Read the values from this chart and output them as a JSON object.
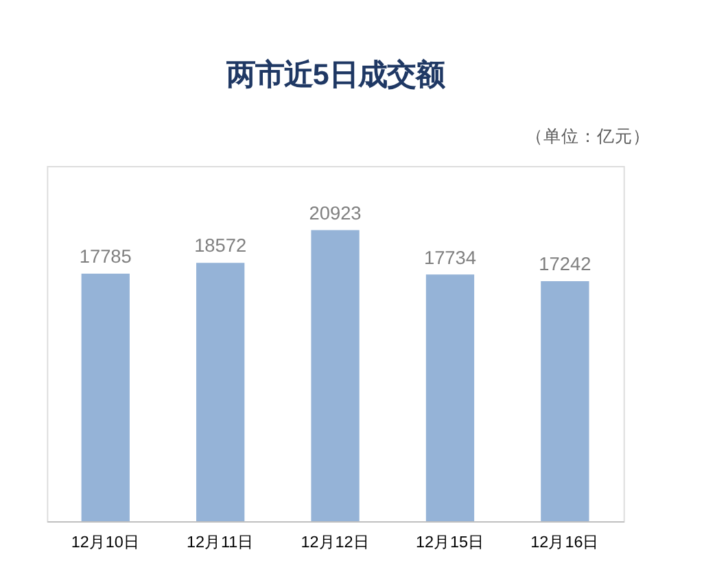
{
  "chart_data": {
    "type": "bar",
    "title": "两市近5日成交额",
    "annotations": [
      "（单位：亿元）"
    ],
    "categories": [
      "12月10日",
      "12月11日",
      "12月12日",
      "12月15日",
      "12月16日"
    ],
    "values": [
      17785,
      18572,
      20923,
      17734,
      17242
    ],
    "color": "#95b3d7",
    "data_labels": true,
    "grid": false
  }
}
